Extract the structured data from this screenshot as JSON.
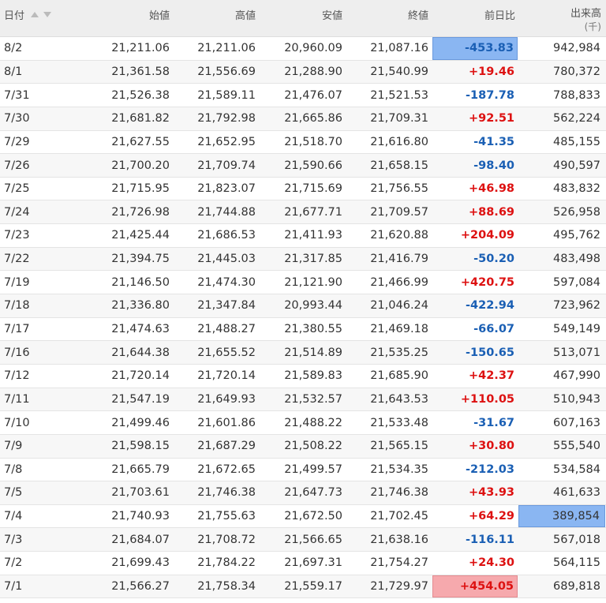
{
  "header": {
    "date": "日付",
    "open": "始値",
    "high": "高値",
    "low": "安値",
    "close": "終値",
    "change": "前日比",
    "volume": "出来高",
    "volume_unit": "(千)"
  },
  "rows": [
    {
      "date": "8/2",
      "open": "21,211.06",
      "high": "21,211.06",
      "low": "20,960.09",
      "close": "21,087.16",
      "change": "-453.83",
      "volume": "942,984"
    },
    {
      "date": "8/1",
      "open": "21,361.58",
      "high": "21,556.69",
      "low": "21,288.90",
      "close": "21,540.99",
      "change": "+19.46",
      "volume": "780,372"
    },
    {
      "date": "7/31",
      "open": "21,526.38",
      "high": "21,589.11",
      "low": "21,476.07",
      "close": "21,521.53",
      "change": "-187.78",
      "volume": "788,833"
    },
    {
      "date": "7/30",
      "open": "21,681.82",
      "high": "21,792.98",
      "low": "21,665.86",
      "close": "21,709.31",
      "change": "+92.51",
      "volume": "562,224"
    },
    {
      "date": "7/29",
      "open": "21,627.55",
      "high": "21,652.95",
      "low": "21,518.70",
      "close": "21,616.80",
      "change": "-41.35",
      "volume": "485,155"
    },
    {
      "date": "7/26",
      "open": "21,700.20",
      "high": "21,709.74",
      "low": "21,590.66",
      "close": "21,658.15",
      "change": "-98.40",
      "volume": "490,597"
    },
    {
      "date": "7/25",
      "open": "21,715.95",
      "high": "21,823.07",
      "low": "21,715.69",
      "close": "21,756.55",
      "change": "+46.98",
      "volume": "483,832"
    },
    {
      "date": "7/24",
      "open": "21,726.98",
      "high": "21,744.88",
      "low": "21,677.71",
      "close": "21,709.57",
      "change": "+88.69",
      "volume": "526,958"
    },
    {
      "date": "7/23",
      "open": "21,425.44",
      "high": "21,686.53",
      "low": "21,411.93",
      "close": "21,620.88",
      "change": "+204.09",
      "volume": "495,762"
    },
    {
      "date": "7/22",
      "open": "21,394.75",
      "high": "21,445.03",
      "low": "21,317.85",
      "close": "21,416.79",
      "change": "-50.20",
      "volume": "483,498"
    },
    {
      "date": "7/19",
      "open": "21,146.50",
      "high": "21,474.30",
      "low": "21,121.90",
      "close": "21,466.99",
      "change": "+420.75",
      "volume": "597,084"
    },
    {
      "date": "7/18",
      "open": "21,336.80",
      "high": "21,347.84",
      "low": "20,993.44",
      "close": "21,046.24",
      "change": "-422.94",
      "volume": "723,962"
    },
    {
      "date": "7/17",
      "open": "21,474.63",
      "high": "21,488.27",
      "low": "21,380.55",
      "close": "21,469.18",
      "change": "-66.07",
      "volume": "549,149"
    },
    {
      "date": "7/16",
      "open": "21,644.38",
      "high": "21,655.52",
      "low": "21,514.89",
      "close": "21,535.25",
      "change": "-150.65",
      "volume": "513,071"
    },
    {
      "date": "7/12",
      "open": "21,720.14",
      "high": "21,720.14",
      "low": "21,589.83",
      "close": "21,685.90",
      "change": "+42.37",
      "volume": "467,990"
    },
    {
      "date": "7/11",
      "open": "21,547.19",
      "high": "21,649.93",
      "low": "21,532.57",
      "close": "21,643.53",
      "change": "+110.05",
      "volume": "510,943"
    },
    {
      "date": "7/10",
      "open": "21,499.46",
      "high": "21,601.86",
      "low": "21,488.22",
      "close": "21,533.48",
      "change": "-31.67",
      "volume": "607,163"
    },
    {
      "date": "7/9",
      "open": "21,598.15",
      "high": "21,687.29",
      "low": "21,508.22",
      "close": "21,565.15",
      "change": "+30.80",
      "volume": "555,540"
    },
    {
      "date": "7/8",
      "open": "21,665.79",
      "high": "21,672.65",
      "low": "21,499.57",
      "close": "21,534.35",
      "change": "-212.03",
      "volume": "534,584"
    },
    {
      "date": "7/5",
      "open": "21,703.61",
      "high": "21,746.38",
      "low": "21,647.73",
      "close": "21,746.38",
      "change": "+43.93",
      "volume": "461,633"
    },
    {
      "date": "7/4",
      "open": "21,740.93",
      "high": "21,755.63",
      "low": "21,672.50",
      "close": "21,702.45",
      "change": "+64.29",
      "volume": "389,854"
    },
    {
      "date": "7/3",
      "open": "21,684.07",
      "high": "21,708.72",
      "low": "21,566.65",
      "close": "21,638.16",
      "change": "-116.11",
      "volume": "567,018"
    },
    {
      "date": "7/2",
      "open": "21,699.43",
      "high": "21,784.22",
      "low": "21,697.31",
      "close": "21,754.27",
      "change": "+24.30",
      "volume": "564,115"
    },
    {
      "date": "7/1",
      "open": "21,566.27",
      "high": "21,758.34",
      "low": "21,559.17",
      "close": "21,729.97",
      "change": "+454.05",
      "volume": "689,818"
    }
  ],
  "highlights": {
    "min_change_row": 0,
    "max_change_row": 23,
    "min_volume_row": 20,
    "min_color": "#8ab6f2",
    "max_color": "#f6a9ad"
  },
  "colors": {
    "positive": "#dd1111",
    "negative": "#1a5fb4",
    "header_bg": "#eeeeee"
  }
}
